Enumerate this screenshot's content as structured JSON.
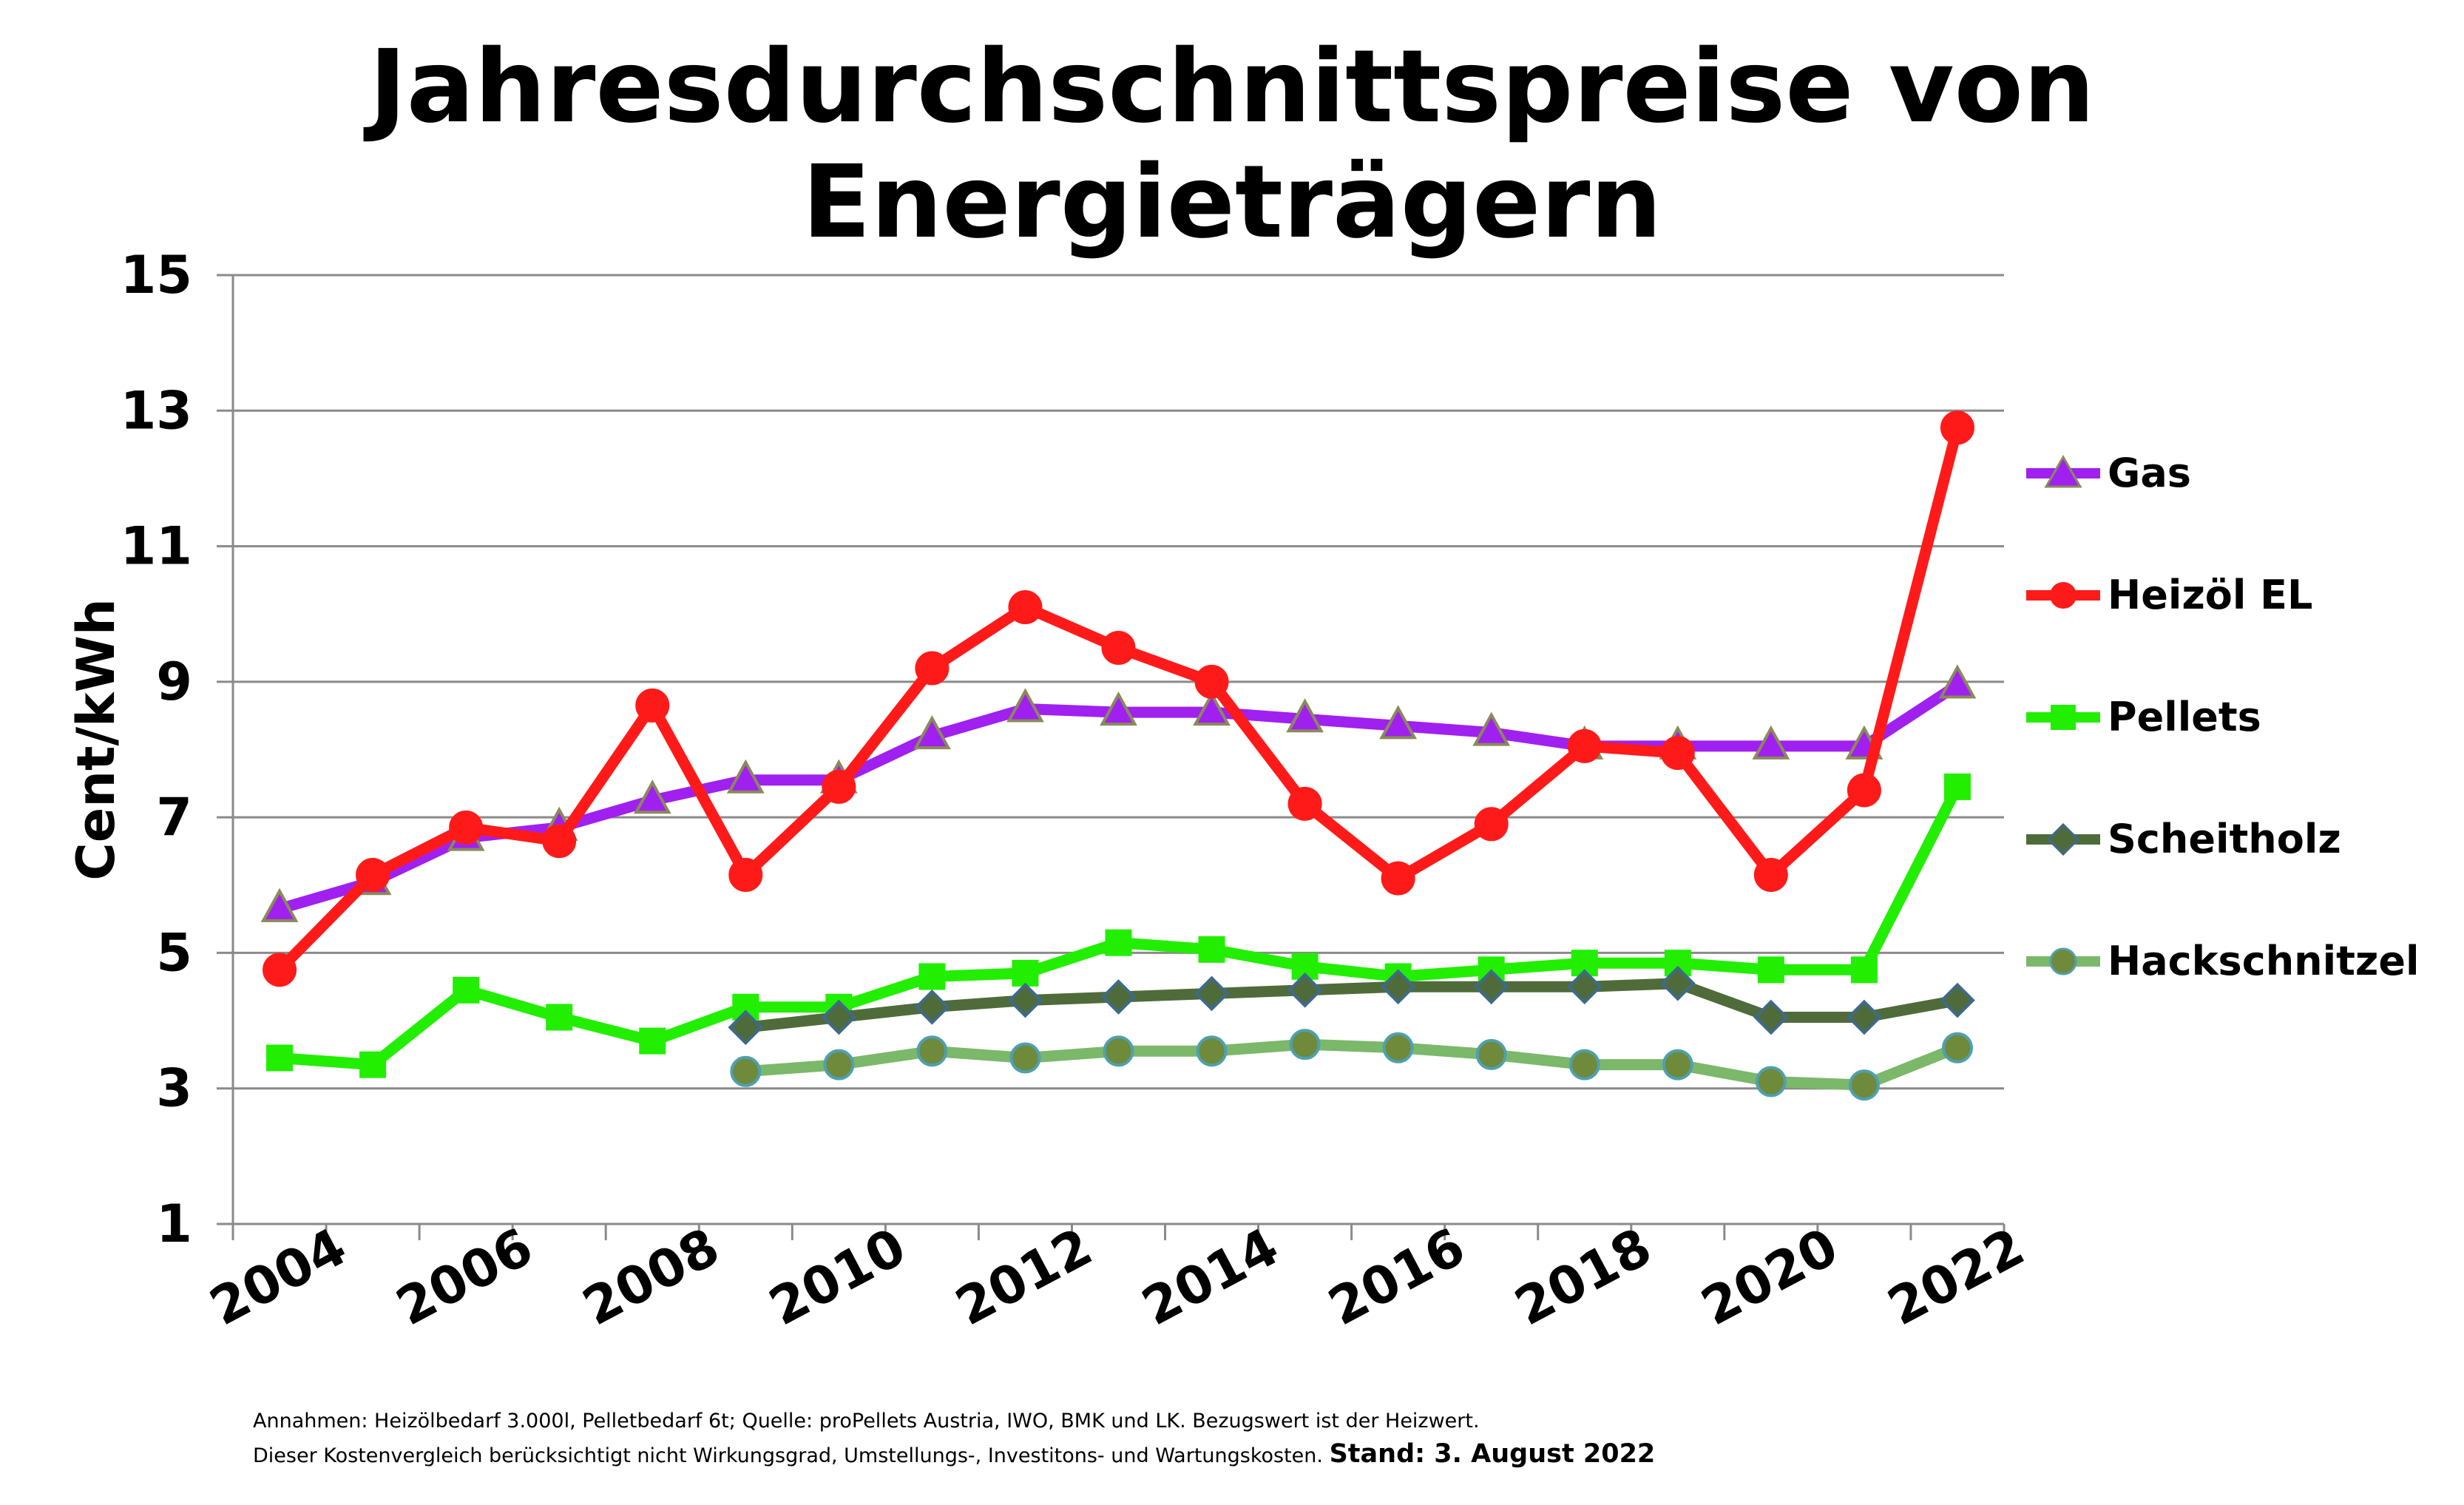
{
  "title_lines": [
    "Jahresdurchschnittspreise von",
    "Energieträgern"
  ],
  "footnote": {
    "line1": "Annahmen: Heizölbedarf 3.000l, Pelletbedarf 6t; Quelle: proPellets Austria, IWO, BMK und LK. Bezugswert ist der Heizwert.",
    "line2": "Dieser Kostenvergleich berücksichtigt nicht Wirkungsgrad, Umstellungs-, Investitons- und  Wartungskosten.",
    "stand": "Stand: 3. August 2022"
  },
  "chart_data": {
    "type": "line",
    "title": "Jahresdurchschnittspreise von Energieträgern",
    "xlabel": "",
    "ylabel": "Cent/kWh",
    "ylim": [
      1,
      15
    ],
    "yticks": [
      1,
      3,
      5,
      7,
      9,
      11,
      13,
      15
    ],
    "x": [
      2004,
      2005,
      2006,
      2007,
      2008,
      2009,
      2010,
      2011,
      2012,
      2013,
      2014,
      2015,
      2016,
      2017,
      2018,
      2019,
      2020,
      2021,
      2022
    ],
    "xtick_labels": [
      "2004",
      "2006",
      "2008",
      "2010",
      "2012",
      "2014",
      "2016",
      "2018",
      "2020",
      "2022"
    ],
    "grid": "horizontal",
    "legend_position": "right",
    "series": [
      {
        "name": "Gas",
        "color": "#a020f0",
        "marker": "triangle",
        "marker_fill": "#a020f0",
        "marker_stroke": "#8a8a5a",
        "values": [
          5.65,
          6.05,
          6.7,
          6.85,
          7.25,
          7.55,
          7.55,
          8.2,
          8.6,
          8.55,
          8.55,
          8.45,
          8.35,
          8.25,
          8.05,
          8.05,
          8.05,
          8.05,
          8.95
        ]
      },
      {
        "name": "Heizöl EL",
        "color": "#ff1a1a",
        "marker": "circle",
        "marker_fill": "#ff1a1a",
        "marker_stroke": "#ff1a1a",
        "values": [
          4.75,
          6.15,
          6.85,
          6.65,
          8.65,
          6.15,
          7.45,
          9.2,
          10.1,
          9.5,
          9.0,
          7.2,
          6.1,
          6.9,
          8.05,
          7.95,
          6.15,
          7.4,
          12.75
        ]
      },
      {
        "name": "Pellets",
        "color": "#22ee00",
        "marker": "square",
        "marker_fill": "#22ee00",
        "marker_stroke": "#22ee00",
        "values": [
          3.45,
          3.35,
          4.45,
          4.05,
          3.7,
          4.2,
          4.2,
          4.65,
          4.7,
          5.15,
          5.05,
          4.8,
          4.65,
          4.75,
          4.85,
          4.85,
          4.75,
          4.75,
          7.45
        ]
      },
      {
        "name": "Scheitholz",
        "color": "#4f6b3a",
        "marker": "diamond",
        "marker_fill": "#4f6b3a",
        "marker_stroke": "#3e6a8a",
        "values": [
          null,
          null,
          null,
          null,
          null,
          3.9,
          4.05,
          4.2,
          4.3,
          4.35,
          4.4,
          4.45,
          4.5,
          4.5,
          4.5,
          4.55,
          4.05,
          4.05,
          4.3
        ]
      },
      {
        "name": "Hackschnitzel",
        "color": "#7bb86a",
        "marker": "circle",
        "marker_fill": "#6e8a3a",
        "marker_stroke": "#4fa0b0",
        "values": [
          null,
          null,
          null,
          null,
          null,
          3.25,
          3.35,
          3.55,
          3.45,
          3.55,
          3.55,
          3.65,
          3.6,
          3.5,
          3.35,
          3.35,
          3.1,
          3.05,
          3.6
        ]
      }
    ]
  }
}
